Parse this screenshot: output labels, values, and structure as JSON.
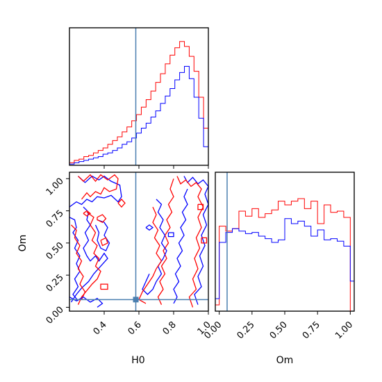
{
  "chart_data": [
    {
      "type": "histogram",
      "panel": "H0-marginal",
      "x_range": [
        0.2,
        1.0
      ],
      "bins": [
        0.2,
        0.2276,
        0.2552,
        0.2828,
        0.3103,
        0.3379,
        0.3655,
        0.3931,
        0.4207,
        0.4483,
        0.4759,
        0.5034,
        0.531,
        0.5586,
        0.5862,
        0.6138,
        0.6414,
        0.669,
        0.6966,
        0.7241,
        0.7517,
        0.7793,
        0.8069,
        0.8345,
        0.8621,
        0.8897,
        0.9172,
        0.9448,
        0.9724,
        1.0
      ],
      "series": [
        {
          "color": "#ff0000",
          "values": [
            0.02,
            0.04,
            0.05,
            0.07,
            0.08,
            0.1,
            0.12,
            0.14,
            0.17,
            0.2,
            0.23,
            0.27,
            0.31,
            0.36,
            0.41,
            0.47,
            0.53,
            0.6,
            0.67,
            0.74,
            0.82,
            0.89,
            0.95,
            1.0,
            0.96,
            0.88,
            0.76,
            0.55,
            0.3
          ]
        },
        {
          "color": "#0000ff",
          "values": [
            0.01,
            0.02,
            0.03,
            0.04,
            0.05,
            0.06,
            0.07,
            0.09,
            0.1,
            0.12,
            0.14,
            0.17,
            0.19,
            0.22,
            0.26,
            0.3,
            0.34,
            0.39,
            0.44,
            0.5,
            0.56,
            0.62,
            0.69,
            0.75,
            0.8,
            0.7,
            0.55,
            0.38,
            0.15
          ]
        }
      ],
      "truth_line": 0.582
    },
    {
      "type": "contour",
      "panel": "H0-Om-joint",
      "x_range": [
        0.2,
        1.0
      ],
      "y_range": [
        -0.03,
        1.05
      ],
      "xlabel": "H0",
      "ylabel": "Om",
      "xticks": [
        "0.4",
        "0.6",
        "0.8",
        "1.0"
      ],
      "yticks": [
        "0.00",
        "0.25",
        "0.50",
        "0.75",
        "1.00"
      ],
      "xtick_values": [
        0.4,
        0.6,
        0.8,
        1.0
      ],
      "ytick_values": [
        0.0,
        0.25,
        0.5,
        0.75,
        1.0
      ],
      "contour_colors": [
        "#ff0000",
        "#0000ff"
      ],
      "truth_point": [
        0.582,
        0.06
      ]
    },
    {
      "type": "histogram",
      "panel": "Om-marginal",
      "x_range": [
        -0.03,
        1.03
      ],
      "xlabel": "Om",
      "xticks": [
        "0.00",
        "0.25",
        "0.50",
        "0.75",
        "1.00"
      ],
      "xtick_values": [
        0.0,
        0.25,
        0.5,
        0.75,
        1.0
      ],
      "bins": [
        -0.03,
        0.0,
        0.05,
        0.1,
        0.15,
        0.2,
        0.25,
        0.3,
        0.35,
        0.4,
        0.45,
        0.5,
        0.55,
        0.6,
        0.65,
        0.7,
        0.75,
        0.8,
        0.85,
        0.9,
        0.95,
        1.0,
        1.03
      ],
      "series": [
        {
          "color": "#ff0000",
          "values": [
            0.05,
            0.68,
            0.64,
            0.66,
            0.8,
            0.76,
            0.82,
            0.75,
            0.78,
            0.81,
            0.88,
            0.85,
            0.88,
            0.9,
            0.82,
            0.88,
            0.7,
            0.85,
            0.79,
            0.8,
            0.75,
            0.0
          ]
        },
        {
          "color": "#0000ff",
          "values": [
            0.1,
            0.55,
            0.63,
            0.66,
            0.64,
            0.62,
            0.63,
            0.6,
            0.58,
            0.55,
            0.57,
            0.74,
            0.7,
            0.72,
            0.68,
            0.6,
            0.65,
            0.57,
            0.58,
            0.56,
            0.52,
            0.24
          ]
        }
      ],
      "truth_line": 0.06
    }
  ],
  "colors": {
    "red": "#ff0000",
    "blue": "#0000ff",
    "truth": "#4a7fb0"
  }
}
